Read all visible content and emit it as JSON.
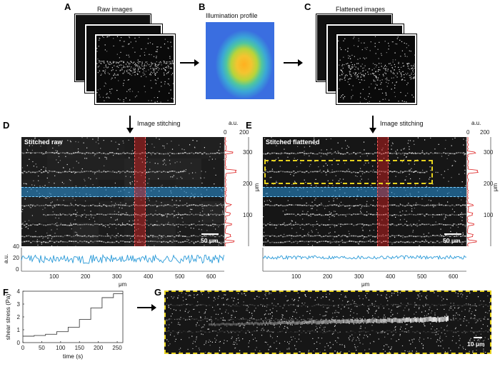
{
  "panels": {
    "A": {
      "letter": "A",
      "caption": "Raw images"
    },
    "B": {
      "letter": "B",
      "caption": "Illumination profile"
    },
    "C": {
      "letter": "C",
      "caption": "Flattened images"
    },
    "D": {
      "letter": "D",
      "step": "Image stitching",
      "title": "Stitched raw",
      "scalebar": "50 μm"
    },
    "E": {
      "letter": "E",
      "step": "Image stitching",
      "title": "Stitched flattened",
      "scalebar": "50 μm"
    },
    "F": {
      "letter": "F"
    },
    "G": {
      "letter": "G",
      "scalebar": "10 μm"
    }
  },
  "axes": {
    "au": "a.u.",
    "um": "μm",
    "x_ticks": [
      "100",
      "200",
      "300",
      "400",
      "500",
      "600"
    ],
    "y_ticks_right": [
      "300",
      "200",
      "100"
    ],
    "profile_ticks_top": [
      "0",
      "200"
    ],
    "profile_y_ticks": [
      "40",
      "20",
      "0"
    ]
  },
  "chart_data": {
    "type": "line",
    "title": "",
    "xlabel": "time (s)",
    "ylabel": "shear stress (Pa)",
    "x_ticks": [
      "0",
      "50",
      "100",
      "150",
      "200",
      "250"
    ],
    "y_ticks": [
      "0",
      "1",
      "2",
      "3",
      "4"
    ],
    "xlim": [
      0,
      265
    ],
    "ylim": [
      0,
      4
    ],
    "series": [
      {
        "name": "shear stress",
        "x": [
          0,
          30,
          30,
          60,
          60,
          90,
          90,
          120,
          120,
          150,
          150,
          180,
          180,
          210,
          210,
          240,
          240,
          265
        ],
        "values": [
          0.5,
          0.5,
          0.55,
          0.55,
          0.65,
          0.65,
          0.85,
          0.85,
          1.2,
          1.2,
          1.8,
          1.8,
          2.7,
          2.7,
          3.5,
          3.5,
          3.8,
          3.8
        ]
      }
    ]
  }
}
